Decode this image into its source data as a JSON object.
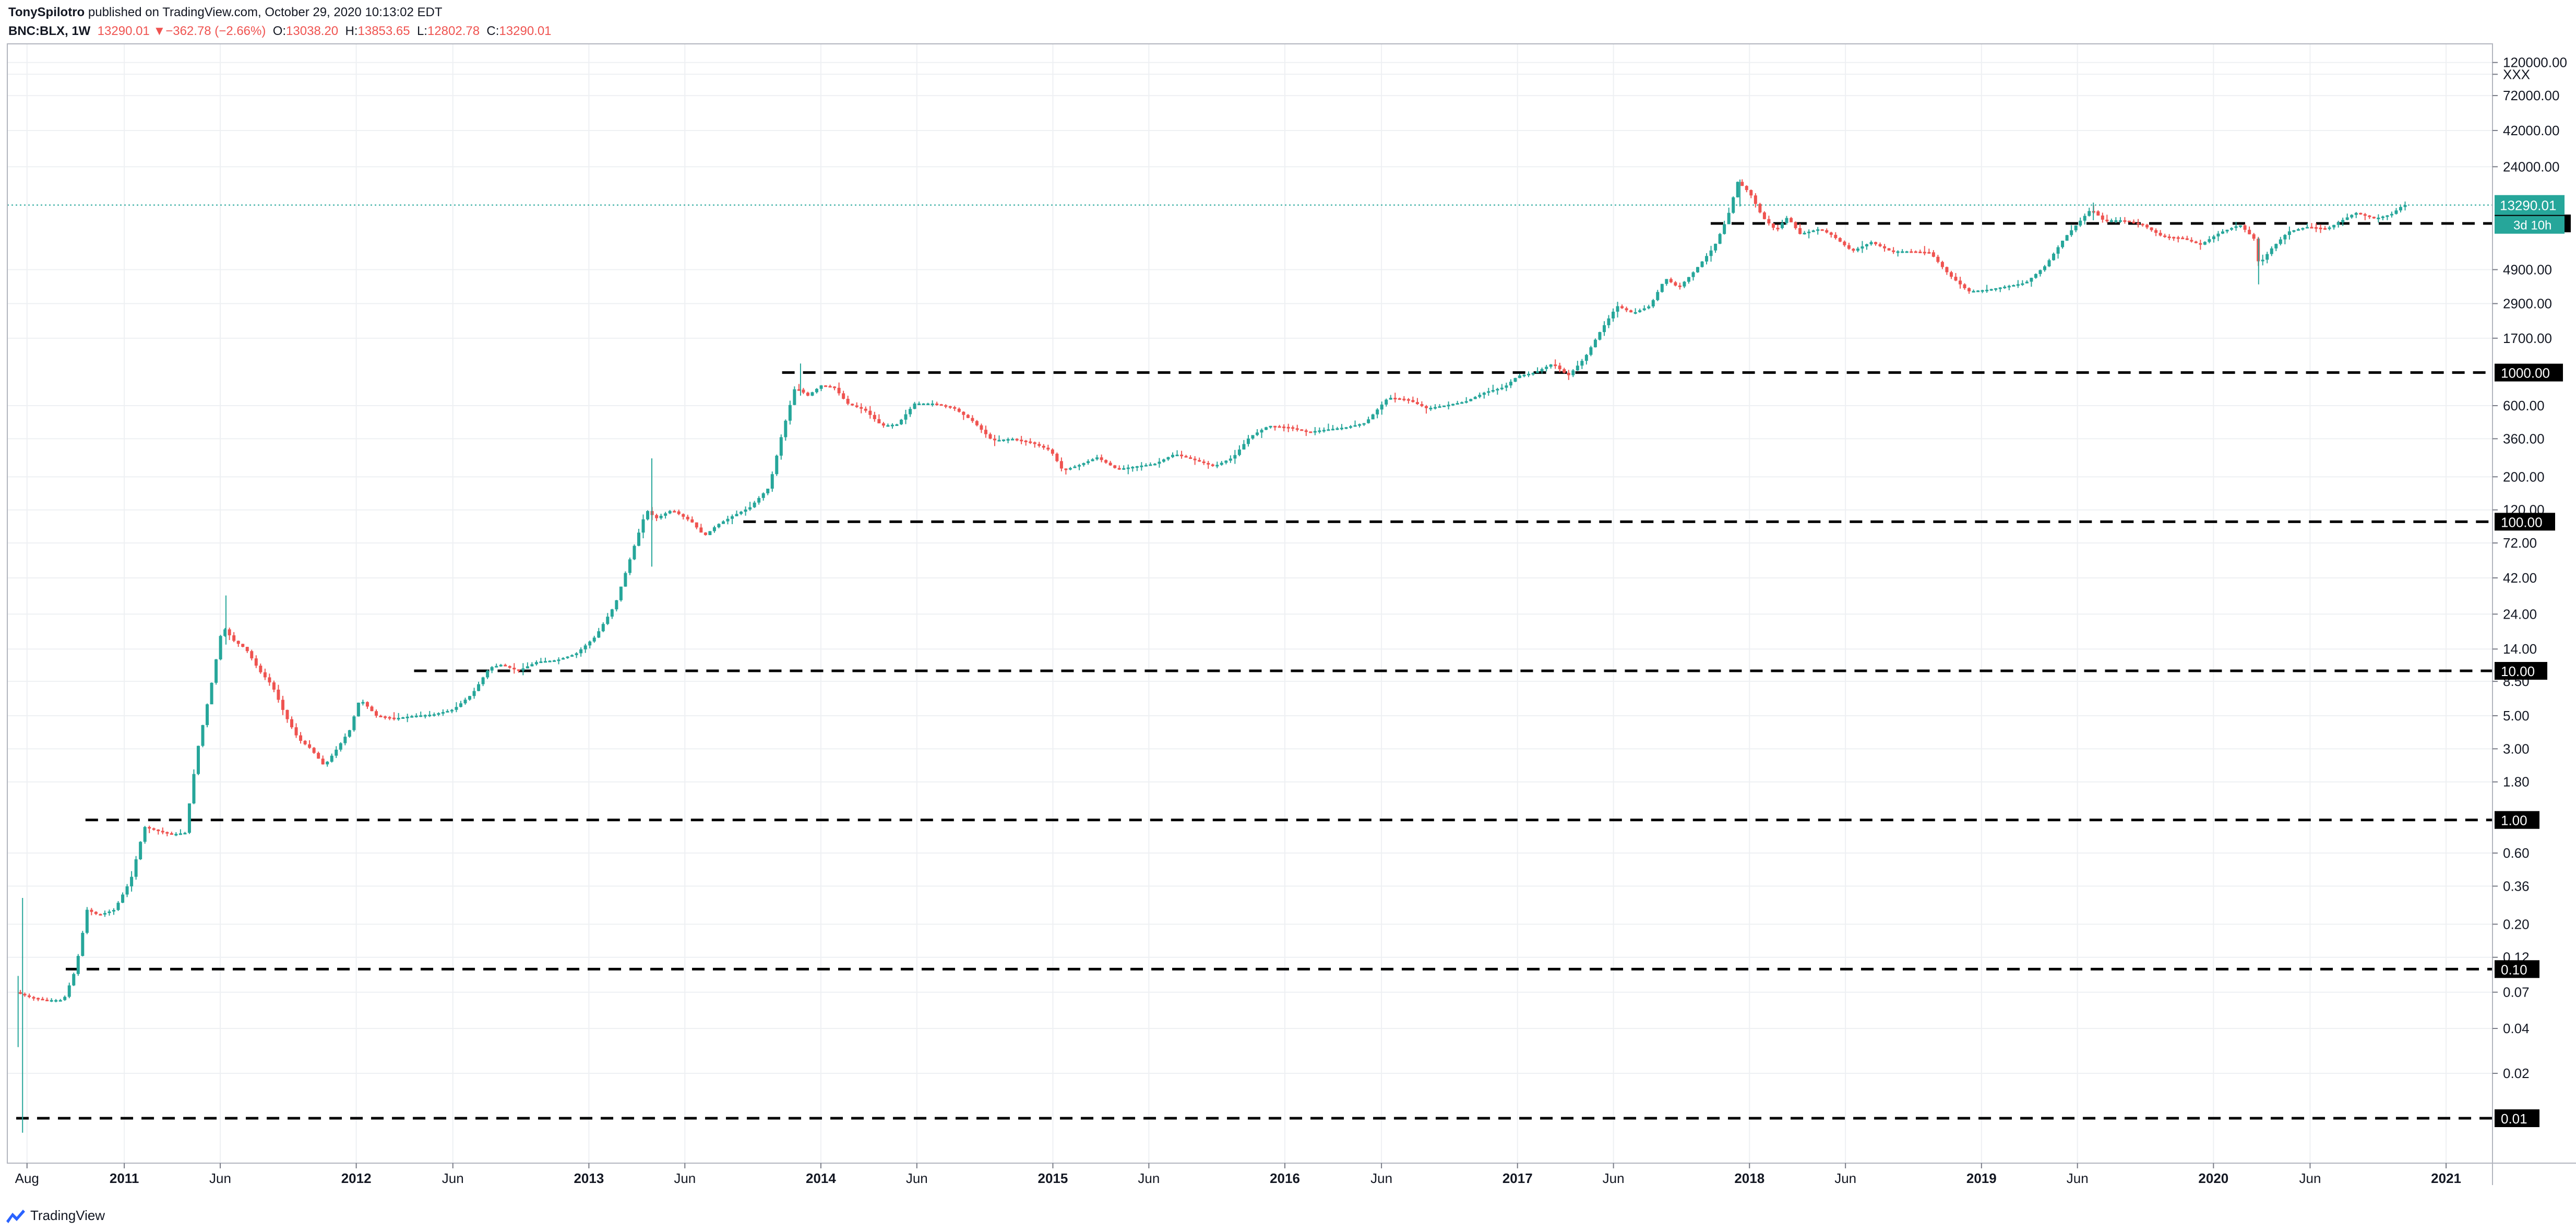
{
  "header": {
    "author": "TonySpilotro",
    "published": "published on TradingView.com, October 29, 2020 10:13:02 EDT",
    "symbol": "BNC:BLX, 1W",
    "last": "13290.01",
    "change": "−362.78 (−2.66%)",
    "o_label": "O:",
    "o_value": "13038.20",
    "h_label": "H:",
    "h_value": "13853.65",
    "l_label": "L:",
    "l_value": "12802.78",
    "c_label": "C:",
    "c_value": "13290.01"
  },
  "footer": {
    "brand": "TradingView",
    "logo_icon": "tradingview-logo-icon"
  },
  "colors": {
    "up": "#26a69a",
    "down": "#ef5350",
    "grid": "#eef0f3",
    "dash": "#000000",
    "price_line": "#26a69a"
  },
  "chart_data": {
    "type": "candlestick",
    "title": "",
    "xlabel": "",
    "ylabel": "",
    "y_scale": "log",
    "grid": true,
    "x_ticks": [
      "Aug",
      "2011",
      "Jun",
      "2012",
      "Jun",
      "2013",
      "Jun",
      "2014",
      "Jun",
      "2015",
      "Jun",
      "2016",
      "Jun",
      "2017",
      "Jun",
      "2018",
      "Jun",
      "2019",
      "Jun",
      "2020",
      "Jun",
      "2021"
    ],
    "y_ticks": [
      "120000.00",
      "XXX",
      "72000.00",
      "42000.00",
      "24000.00",
      "4900.00",
      "2900.00",
      "1700.00",
      "600.00",
      "360.00",
      "200.00",
      "120.00",
      "72.00",
      "42.00",
      "24.00",
      "14.00",
      "8.50",
      "5.00",
      "3.00",
      "1.80",
      "0.60",
      "0.36",
      "0.20",
      "0.12",
      "0.07",
      "0.04",
      "0.02"
    ],
    "y_tick_values": [
      120000,
      100000,
      72000,
      42000,
      24000,
      4900,
      2900,
      1700,
      600,
      360,
      200,
      120,
      72,
      42,
      24,
      14,
      8.5,
      5,
      3,
      1.8,
      0.6,
      0.36,
      0.2,
      0.12,
      0.07,
      0.04,
      0.02
    ],
    "x_range": [
      "2010-07-01",
      "2021-03-15"
    ],
    "y_range": [
      0.005,
      160000
    ],
    "horizontal_levels": [
      {
        "label": "10000.00",
        "value": 10000,
        "start": "2017-11-01"
      },
      {
        "label": "1000.00",
        "value": 1000,
        "start": "2013-11-01"
      },
      {
        "label": "100.00",
        "value": 100,
        "start": "2013-09-01"
      },
      {
        "label": "10.00",
        "value": 10,
        "start": "2012-04-01"
      },
      {
        "label": "1.00",
        "value": 1,
        "start": "2010-11-01"
      },
      {
        "label": "0.10",
        "value": 0.1,
        "start": "2010-10-01"
      },
      {
        "label": "0.01",
        "value": 0.01,
        "start": "2010-07-15"
      }
    ],
    "current_price": {
      "label": "13290.01",
      "value": 13290.01
    },
    "countdown": {
      "label": "3d 10h"
    },
    "price_path": [
      [
        "2010-07-18",
        0.07
      ],
      [
        "2010-08-08",
        0.065
      ],
      [
        "2010-09-01",
        0.062
      ],
      [
        "2010-10-01",
        0.062
      ],
      [
        "2010-10-20",
        0.1
      ],
      [
        "2010-11-07",
        0.25
      ],
      [
        "2010-11-25",
        0.23
      ],
      [
        "2010-12-20",
        0.25
      ],
      [
        "2011-01-15",
        0.4
      ],
      [
        "2011-02-05",
        0.9
      ],
      [
        "2011-02-25",
        0.85
      ],
      [
        "2011-03-20",
        0.8
      ],
      [
        "2011-04-10",
        0.82
      ],
      [
        "2011-04-30",
        3.0
      ],
      [
        "2011-05-20",
        7.5
      ],
      [
        "2011-06-08",
        20
      ],
      [
        "2011-06-25",
        16
      ],
      [
        "2011-07-15",
        14
      ],
      [
        "2011-08-05",
        10
      ],
      [
        "2011-08-25",
        8
      ],
      [
        "2011-09-15",
        5
      ],
      [
        "2011-10-05",
        3.5
      ],
      [
        "2011-10-25",
        3
      ],
      [
        "2011-11-15",
        2.3
      ],
      [
        "2011-12-05",
        3
      ],
      [
        "2011-12-25",
        4
      ],
      [
        "2012-01-10",
        6.5
      ],
      [
        "2012-02-05",
        5
      ],
      [
        "2012-03-05",
        4.8
      ],
      [
        "2012-04-05",
        5
      ],
      [
        "2012-05-05",
        5.1
      ],
      [
        "2012-06-05",
        5.5
      ],
      [
        "2012-07-05",
        7
      ],
      [
        "2012-08-01",
        10.5
      ],
      [
        "2012-08-20",
        11
      ],
      [
        "2012-09-15",
        10
      ],
      [
        "2012-10-15",
        11.5
      ],
      [
        "2012-11-15",
        11.8
      ],
      [
        "2012-12-15",
        13
      ],
      [
        "2013-01-15",
        17
      ],
      [
        "2013-02-15",
        28
      ],
      [
        "2013-03-15",
        65
      ],
      [
        "2013-04-05",
        120
      ],
      [
        "2013-04-20",
        105
      ],
      [
        "2013-05-15",
        120
      ],
      [
        "2013-06-15",
        100
      ],
      [
        "2013-07-05",
        80
      ],
      [
        "2013-07-25",
        95
      ],
      [
        "2013-08-20",
        110
      ],
      [
        "2013-09-15",
        125
      ],
      [
        "2013-10-15",
        170
      ],
      [
        "2013-11-05",
        400
      ],
      [
        "2013-11-25",
        800
      ],
      [
        "2013-12-15",
        700
      ],
      [
        "2014-01-05",
        820
      ],
      [
        "2014-01-25",
        800
      ],
      [
        "2014-02-15",
        620
      ],
      [
        "2014-03-15",
        560
      ],
      [
        "2014-04-10",
        440
      ],
      [
        "2014-05-05",
        450
      ],
      [
        "2014-06-01",
        620
      ],
      [
        "2014-07-01",
        620
      ],
      [
        "2014-08-01",
        580
      ],
      [
        "2014-09-01",
        470
      ],
      [
        "2014-10-01",
        350
      ],
      [
        "2014-11-01",
        360
      ],
      [
        "2014-12-01",
        340
      ],
      [
        "2015-01-01",
        300
      ],
      [
        "2015-01-20",
        220
      ],
      [
        "2015-02-15",
        240
      ],
      [
        "2015-03-15",
        270
      ],
      [
        "2015-04-15",
        225
      ],
      [
        "2015-05-15",
        235
      ],
      [
        "2015-06-15",
        245
      ],
      [
        "2015-07-15",
        285
      ],
      [
        "2015-08-15",
        260
      ],
      [
        "2015-09-15",
        235
      ],
      [
        "2015-10-15",
        270
      ],
      [
        "2015-11-10",
        370
      ],
      [
        "2015-12-10",
        440
      ],
      [
        "2016-01-10",
        430
      ],
      [
        "2016-02-10",
        400
      ],
      [
        "2016-03-10",
        415
      ],
      [
        "2016-04-10",
        430
      ],
      [
        "2016-05-10",
        460
      ],
      [
        "2016-06-15",
        680
      ],
      [
        "2016-07-15",
        660
      ],
      [
        "2016-08-15",
        575
      ],
      [
        "2016-09-15",
        605
      ],
      [
        "2016-10-15",
        640
      ],
      [
        "2016-11-15",
        740
      ],
      [
        "2016-12-15",
        800
      ],
      [
        "2017-01-05",
        950
      ],
      [
        "2017-02-01",
        1000
      ],
      [
        "2017-03-01",
        1150
      ],
      [
        "2017-03-25",
        950
      ],
      [
        "2017-04-20",
        1250
      ],
      [
        "2017-05-15",
        1900
      ],
      [
        "2017-06-10",
        2800
      ],
      [
        "2017-07-05",
        2500
      ],
      [
        "2017-08-01",
        2800
      ],
      [
        "2017-08-25",
        4300
      ],
      [
        "2017-09-15",
        3700
      ],
      [
        "2017-10-10",
        4800
      ],
      [
        "2017-11-10",
        7000
      ],
      [
        "2017-12-01",
        11000
      ],
      [
        "2017-12-17",
        19000
      ],
      [
        "2018-01-05",
        16000
      ],
      [
        "2018-01-25",
        11000
      ],
      [
        "2018-02-15",
        9000
      ],
      [
        "2018-03-05",
        11000
      ],
      [
        "2018-03-25",
        8500
      ],
      [
        "2018-04-25",
        9200
      ],
      [
        "2018-05-15",
        8300
      ],
      [
        "2018-06-15",
        6500
      ],
      [
        "2018-07-15",
        7500
      ],
      [
        "2018-08-15",
        6500
      ],
      [
        "2018-09-15",
        6500
      ],
      [
        "2018-10-15",
        6400
      ],
      [
        "2018-11-15",
        4500
      ],
      [
        "2018-12-15",
        3500
      ],
      [
        "2019-01-15",
        3600
      ],
      [
        "2019-02-15",
        3800
      ],
      [
        "2019-03-15",
        4000
      ],
      [
        "2019-04-15",
        5200
      ],
      [
        "2019-05-15",
        8000
      ],
      [
        "2019-06-26",
        12500
      ],
      [
        "2019-07-15",
        10500
      ],
      [
        "2019-08-15",
        10500
      ],
      [
        "2019-09-15",
        9800
      ],
      [
        "2019-10-15",
        8200
      ],
      [
        "2019-11-15",
        8000
      ],
      [
        "2019-12-15",
        7200
      ],
      [
        "2020-01-15",
        8700
      ],
      [
        "2020-02-15",
        9800
      ],
      [
        "2020-03-08",
        7900
      ],
      [
        "2020-03-16",
        5300
      ],
      [
        "2020-04-05",
        6800
      ],
      [
        "2020-05-01",
        8800
      ],
      [
        "2020-06-01",
        9500
      ],
      [
        "2020-07-01",
        9200
      ],
      [
        "2020-07-25",
        10500
      ],
      [
        "2020-08-15",
        11800
      ],
      [
        "2020-09-15",
        10800
      ],
      [
        "2020-10-10",
        11500
      ],
      [
        "2020-10-29",
        13290.01
      ]
    ],
    "spikes": [
      {
        "x": "2010-07-25",
        "high": 0.3,
        "low": 0.008
      },
      {
        "x": "2010-07-18",
        "high": 0.09,
        "low": 0.03
      },
      {
        "x": "2011-06-10",
        "high": 32,
        "low": 15
      },
      {
        "x": "2013-04-10",
        "high": 266,
        "low": 50
      },
      {
        "x": "2013-11-30",
        "high": 1150,
        "low": 700
      },
      {
        "x": "2017-12-17",
        "high": 19700,
        "low": 13000
      },
      {
        "x": "2019-06-26",
        "high": 13800,
        "low": 10500
      },
      {
        "x": "2020-03-12",
        "high": 8000,
        "low": 3900
      }
    ]
  }
}
